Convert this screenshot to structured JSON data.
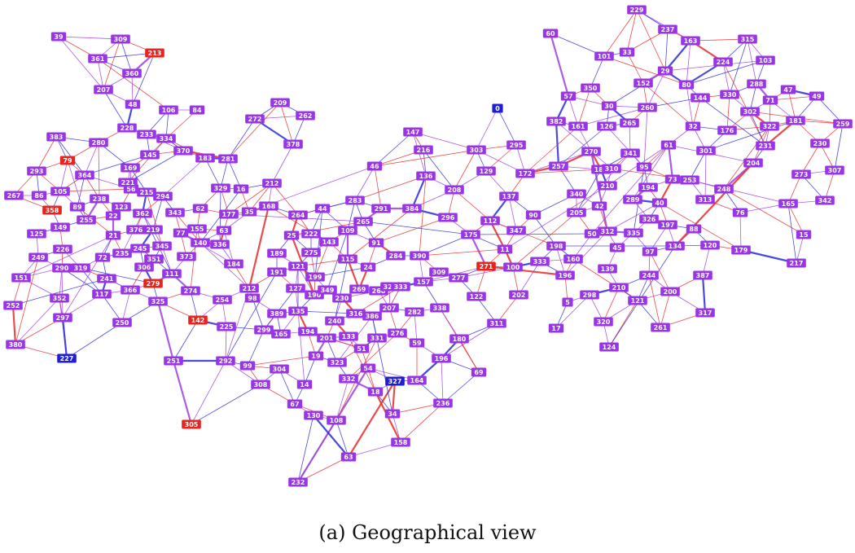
{
  "caption": "(a) Geographical view",
  "colors": {
    "node_default": "#9a34e8",
    "node_red": "#e8241f",
    "node_blue": "#1d1ed6",
    "edge_red": "#e62a2a",
    "edge_blue": "#2b2ad8",
    "edge_purple": "#9b3fe0"
  },
  "graph": {
    "nodes": [
      {
        "id": "39",
        "c": "purple"
      },
      {
        "id": "309",
        "c": "purple"
      },
      {
        "id": "213",
        "c": "red"
      },
      {
        "id": "361",
        "c": "purple"
      },
      {
        "id": "360",
        "c": "purple"
      },
      {
        "id": "207",
        "c": "purple"
      },
      {
        "id": "48",
        "c": "purple"
      },
      {
        "id": "106",
        "c": "purple"
      },
      {
        "id": "84",
        "c": "purple"
      },
      {
        "id": "228",
        "c": "purple"
      },
      {
        "id": "233",
        "c": "purple"
      },
      {
        "id": "383",
        "c": "purple"
      },
      {
        "id": "280",
        "c": "purple"
      },
      {
        "id": "79",
        "c": "red"
      },
      {
        "id": "293",
        "c": "purple"
      },
      {
        "id": "364",
        "c": "purple"
      },
      {
        "id": "169",
        "c": "purple"
      },
      {
        "id": "145",
        "c": "purple"
      },
      {
        "id": "334",
        "c": "purple"
      },
      {
        "id": "370",
        "c": "purple"
      },
      {
        "id": "183",
        "c": "purple"
      },
      {
        "id": "281",
        "c": "purple"
      },
      {
        "id": "267",
        "c": "purple"
      },
      {
        "id": "86",
        "c": "purple"
      },
      {
        "id": "105",
        "c": "purple"
      },
      {
        "id": "358",
        "c": "red"
      },
      {
        "id": "89",
        "c": "purple"
      },
      {
        "id": "125",
        "c": "purple"
      },
      {
        "id": "149",
        "c": "purple"
      },
      {
        "id": "255",
        "c": "purple"
      },
      {
        "id": "249",
        "c": "purple"
      },
      {
        "id": "226",
        "c": "purple"
      },
      {
        "id": "290",
        "c": "purple"
      },
      {
        "id": "319",
        "c": "purple"
      },
      {
        "id": "151",
        "c": "purple"
      },
      {
        "id": "252",
        "c": "purple"
      },
      {
        "id": "352",
        "c": "purple"
      },
      {
        "id": "117",
        "c": "purple"
      },
      {
        "id": "297",
        "c": "purple"
      },
      {
        "id": "250",
        "c": "purple"
      },
      {
        "id": "380",
        "c": "purple"
      },
      {
        "id": "227",
        "c": "blue"
      },
      {
        "id": "366",
        "c": "purple"
      },
      {
        "id": "279",
        "c": "red"
      },
      {
        "id": "325",
        "c": "purple"
      },
      {
        "id": "111",
        "c": "purple"
      },
      {
        "id": "373",
        "c": "purple"
      },
      {
        "id": "140",
        "c": "purple"
      },
      {
        "id": "343",
        "c": "purple"
      },
      {
        "id": "294",
        "c": "purple"
      },
      {
        "id": "329",
        "c": "purple"
      },
      {
        "id": "177",
        "c": "purple"
      },
      {
        "id": "35",
        "c": "purple"
      },
      {
        "id": "16",
        "c": "purple"
      },
      {
        "id": "272",
        "c": "purple"
      },
      {
        "id": "209",
        "c": "purple"
      },
      {
        "id": "262",
        "c": "purple"
      },
      {
        "id": "378",
        "c": "purple"
      },
      {
        "id": "212",
        "c": "purple"
      },
      {
        "id": "168",
        "c": "purple"
      },
      {
        "id": "184",
        "c": "purple"
      },
      {
        "id": "274",
        "c": "purple"
      },
      {
        "id": "254",
        "c": "purple"
      },
      {
        "id": "142",
        "c": "red"
      },
      {
        "id": "225",
        "c": "purple"
      },
      {
        "id": "251",
        "c": "purple"
      },
      {
        "id": "292",
        "c": "purple"
      },
      {
        "id": "305",
        "c": "red"
      },
      {
        "id": "99",
        "c": "purple"
      },
      {
        "id": "98",
        "c": "purple"
      },
      {
        "id": "212b",
        "c": "purple",
        "label": "212"
      },
      {
        "id": "189",
        "c": "purple"
      },
      {
        "id": "191",
        "c": "purple"
      },
      {
        "id": "299",
        "c": "purple"
      },
      {
        "id": "389",
        "c": "purple"
      },
      {
        "id": "135",
        "c": "purple"
      },
      {
        "id": "165",
        "c": "purple"
      },
      {
        "id": "194",
        "c": "purple"
      },
      {
        "id": "304",
        "c": "purple"
      },
      {
        "id": "308",
        "c": "purple"
      },
      {
        "id": "67",
        "c": "purple"
      },
      {
        "id": "14",
        "c": "purple"
      },
      {
        "id": "130",
        "c": "purple"
      },
      {
        "id": "232",
        "c": "purple"
      },
      {
        "id": "19",
        "c": "purple"
      },
      {
        "id": "201",
        "c": "purple"
      },
      {
        "id": "190",
        "c": "purple"
      },
      {
        "id": "199",
        "c": "purple"
      },
      {
        "id": "349",
        "c": "purple"
      },
      {
        "id": "127",
        "c": "purple"
      },
      {
        "id": "121",
        "c": "purple"
      },
      {
        "id": "275",
        "c": "purple"
      },
      {
        "id": "25",
        "c": "purple"
      },
      {
        "id": "222",
        "c": "purple"
      },
      {
        "id": "143",
        "c": "purple"
      },
      {
        "id": "44",
        "c": "purple"
      },
      {
        "id": "264",
        "c": "purple"
      },
      {
        "id": "283",
        "c": "purple"
      },
      {
        "id": "265",
        "c": "purple"
      },
      {
        "id": "109",
        "c": "purple"
      },
      {
        "id": "91",
        "c": "purple"
      },
      {
        "id": "115",
        "c": "purple"
      },
      {
        "id": "24",
        "c": "purple"
      },
      {
        "id": "230",
        "c": "purple"
      },
      {
        "id": "240",
        "c": "purple"
      },
      {
        "id": "316",
        "c": "purple"
      },
      {
        "id": "386",
        "c": "purple"
      },
      {
        "id": "133",
        "c": "purple"
      },
      {
        "id": "323",
        "c": "purple"
      },
      {
        "id": "332",
        "c": "purple"
      },
      {
        "id": "54",
        "c": "purple"
      },
      {
        "id": "18",
        "c": "purple"
      },
      {
        "id": "108",
        "c": "purple"
      },
      {
        "id": "63",
        "c": "purple"
      },
      {
        "id": "331",
        "c": "purple"
      },
      {
        "id": "51",
        "c": "purple"
      },
      {
        "id": "269",
        "c": "purple"
      },
      {
        "id": "268",
        "c": "purple"
      },
      {
        "id": "328",
        "c": "purple"
      },
      {
        "id": "207b",
        "c": "purple",
        "label": "207"
      },
      {
        "id": "276",
        "c": "purple"
      },
      {
        "id": "59",
        "c": "purple"
      },
      {
        "id": "282",
        "c": "purple"
      },
      {
        "id": "338",
        "c": "purple"
      },
      {
        "id": "180",
        "c": "purple"
      },
      {
        "id": "196",
        "c": "purple"
      },
      {
        "id": "284",
        "c": "purple"
      },
      {
        "id": "390",
        "c": "purple"
      },
      {
        "id": "333",
        "c": "purple"
      },
      {
        "id": "157",
        "c": "purple"
      },
      {
        "id": "309b",
        "c": "purple",
        "label": "309"
      },
      {
        "id": "277",
        "c": "purple"
      },
      {
        "id": "122",
        "c": "purple"
      },
      {
        "id": "311",
        "c": "purple"
      },
      {
        "id": "69",
        "c": "purple"
      },
      {
        "id": "327",
        "c": "blue"
      },
      {
        "id": "164",
        "c": "purple"
      },
      {
        "id": "236",
        "c": "purple"
      },
      {
        "id": "34",
        "c": "purple"
      },
      {
        "id": "158",
        "c": "purple"
      },
      {
        "id": "291",
        "c": "purple"
      },
      {
        "id": "384",
        "c": "purple"
      },
      {
        "id": "296",
        "c": "purple"
      },
      {
        "id": "175",
        "c": "purple"
      },
      {
        "id": "147",
        "c": "purple"
      },
      {
        "id": "216",
        "c": "purple"
      },
      {
        "id": "46",
        "c": "purple"
      },
      {
        "id": "136",
        "c": "purple"
      },
      {
        "id": "208",
        "c": "purple"
      },
      {
        "id": "129",
        "c": "purple"
      },
      {
        "id": "303",
        "c": "purple"
      },
      {
        "id": "0",
        "c": "blue"
      },
      {
        "id": "295",
        "c": "purple"
      },
      {
        "id": "172",
        "c": "purple"
      },
      {
        "id": "137",
        "c": "purple"
      },
      {
        "id": "112",
        "c": "purple"
      },
      {
        "id": "347",
        "c": "purple"
      },
      {
        "id": "271",
        "c": "red"
      },
      {
        "id": "100",
        "c": "purple"
      },
      {
        "id": "11",
        "c": "purple"
      },
      {
        "id": "90",
        "c": "purple"
      },
      {
        "id": "202",
        "c": "purple"
      },
      {
        "id": "60",
        "c": "purple"
      },
      {
        "id": "57",
        "c": "purple"
      },
      {
        "id": "350",
        "c": "purple"
      },
      {
        "id": "382",
        "c": "purple"
      },
      {
        "id": "161",
        "c": "purple"
      },
      {
        "id": "257",
        "c": "purple"
      },
      {
        "id": "270",
        "c": "purple"
      },
      {
        "id": "186",
        "c": "purple"
      },
      {
        "id": "340",
        "c": "purple"
      },
      {
        "id": "30",
        "c": "purple"
      },
      {
        "id": "126",
        "c": "purple"
      },
      {
        "id": "265b",
        "c": "purple",
        "label": "265"
      },
      {
        "id": "341",
        "c": "purple"
      },
      {
        "id": "310",
        "c": "purple"
      },
      {
        "id": "210",
        "c": "purple"
      },
      {
        "id": "205",
        "c": "purple"
      },
      {
        "id": "42",
        "c": "purple"
      },
      {
        "id": "198",
        "c": "purple"
      },
      {
        "id": "50",
        "c": "purple"
      },
      {
        "id": "333b",
        "c": "purple",
        "label": "333"
      },
      {
        "id": "160",
        "c": "purple"
      },
      {
        "id": "196b",
        "c": "purple",
        "label": "196"
      },
      {
        "id": "5",
        "c": "purple"
      },
      {
        "id": "17",
        "c": "purple"
      },
      {
        "id": "298",
        "c": "purple"
      },
      {
        "id": "139",
        "c": "purple"
      },
      {
        "id": "45",
        "c": "purple"
      },
      {
        "id": "312",
        "c": "purple"
      },
      {
        "id": "210b",
        "c": "purple",
        "label": "210"
      },
      {
        "id": "320",
        "c": "purple"
      },
      {
        "id": "124",
        "c": "purple"
      },
      {
        "id": "121b",
        "c": "purple",
        "label": "121"
      },
      {
        "id": "244",
        "c": "purple"
      },
      {
        "id": "261",
        "c": "purple"
      },
      {
        "id": "200",
        "c": "purple"
      },
      {
        "id": "317",
        "c": "purple"
      },
      {
        "id": "387",
        "c": "purple"
      },
      {
        "id": "134",
        "c": "purple"
      },
      {
        "id": "120",
        "c": "purple"
      },
      {
        "id": "97",
        "c": "purple"
      },
      {
        "id": "335",
        "c": "purple"
      },
      {
        "id": "326",
        "c": "purple"
      },
      {
        "id": "197",
        "c": "purple"
      },
      {
        "id": "289",
        "c": "purple"
      },
      {
        "id": "40",
        "c": "purple"
      },
      {
        "id": "194b",
        "c": "purple",
        "label": "194"
      },
      {
        "id": "95",
        "c": "purple"
      },
      {
        "id": "73",
        "c": "purple"
      },
      {
        "id": "253",
        "c": "purple"
      },
      {
        "id": "88",
        "c": "purple"
      },
      {
        "id": "313",
        "c": "purple"
      },
      {
        "id": "248",
        "c": "purple"
      },
      {
        "id": "76",
        "c": "purple"
      },
      {
        "id": "179",
        "c": "purple"
      },
      {
        "id": "217",
        "c": "purple"
      },
      {
        "id": "15",
        "c": "purple"
      },
      {
        "id": "165b",
        "c": "purple",
        "label": "165"
      },
      {
        "id": "273",
        "c": "purple"
      },
      {
        "id": "342",
        "c": "purple"
      },
      {
        "id": "307",
        "c": "purple"
      },
      {
        "id": "204",
        "c": "purple"
      },
      {
        "id": "231",
        "c": "purple"
      },
      {
        "id": "230b",
        "c": "purple",
        "label": "230"
      },
      {
        "id": "259",
        "c": "purple"
      },
      {
        "id": "181",
        "c": "purple"
      },
      {
        "id": "322",
        "c": "purple"
      },
      {
        "id": "49",
        "c": "purple"
      },
      {
        "id": "47",
        "c": "purple"
      },
      {
        "id": "288",
        "c": "purple"
      },
      {
        "id": "71",
        "c": "purple"
      },
      {
        "id": "302",
        "c": "purple"
      },
      {
        "id": "330",
        "c": "purple"
      },
      {
        "id": "144",
        "c": "purple"
      },
      {
        "id": "103",
        "c": "purple"
      },
      {
        "id": "315",
        "c": "purple"
      },
      {
        "id": "224",
        "c": "purple"
      },
      {
        "id": "163",
        "c": "purple"
      },
      {
        "id": "80",
        "c": "purple"
      },
      {
        "id": "29",
        "c": "purple"
      },
      {
        "id": "237",
        "c": "purple"
      },
      {
        "id": "229",
        "c": "purple"
      },
      {
        "id": "152",
        "c": "purple"
      },
      {
        "id": "33",
        "c": "purple"
      },
      {
        "id": "101",
        "c": "purple"
      },
      {
        "id": "260",
        "c": "purple"
      },
      {
        "id": "32",
        "c": "purple"
      },
      {
        "id": "61",
        "c": "purple"
      },
      {
        "id": "301",
        "c": "purple"
      },
      {
        "id": "176",
        "c": "purple"
      },
      {
        "id": "22",
        "c": "purple"
      },
      {
        "id": "56",
        "c": "purple"
      },
      {
        "id": "123",
        "c": "purple"
      },
      {
        "id": "362",
        "c": "purple"
      },
      {
        "id": "378b",
        "c": "purple",
        "label": "376"
      },
      {
        "id": "245",
        "c": "purple"
      },
      {
        "id": "345",
        "c": "purple"
      },
      {
        "id": "351",
        "c": "purple"
      },
      {
        "id": "306",
        "c": "purple"
      },
      {
        "id": "235",
        "c": "purple"
      },
      {
        "id": "241",
        "c": "purple"
      },
      {
        "id": "72",
        "c": "purple"
      },
      {
        "id": "21",
        "c": "purple"
      },
      {
        "id": "155",
        "c": "purple"
      },
      {
        "id": "62",
        "c": "purple"
      },
      {
        "id": "77",
        "c": "purple"
      },
      {
        "id": "219",
        "c": "purple"
      },
      {
        "id": "215",
        "c": "purple"
      },
      {
        "id": "221",
        "c": "purple"
      },
      {
        "id": "63b",
        "c": "purple",
        "label": "63"
      },
      {
        "id": "238",
        "c": "purple"
      },
      {
        "id": "336",
        "c": "purple"
      }
    ]
  }
}
